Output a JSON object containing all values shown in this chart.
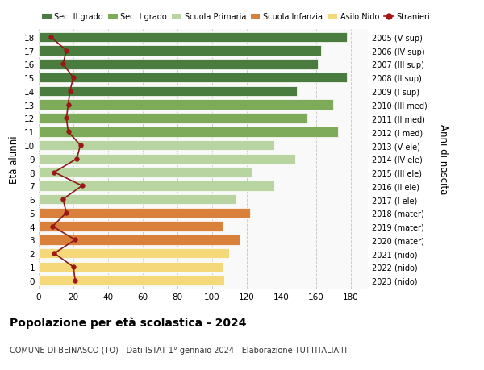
{
  "ages": [
    18,
    17,
    16,
    15,
    14,
    13,
    12,
    11,
    10,
    9,
    8,
    7,
    6,
    5,
    4,
    3,
    2,
    1,
    0
  ],
  "right_labels": [
    "2005 (V sup)",
    "2006 (IV sup)",
    "2007 (III sup)",
    "2008 (II sup)",
    "2009 (I sup)",
    "2010 (III med)",
    "2011 (II med)",
    "2012 (I med)",
    "2013 (V ele)",
    "2014 (IV ele)",
    "2015 (III ele)",
    "2016 (II ele)",
    "2017 (I ele)",
    "2018 (mater)",
    "2019 (mater)",
    "2020 (mater)",
    "2021 (nido)",
    "2022 (nido)",
    "2023 (nido)"
  ],
  "values": [
    178,
    163,
    161,
    178,
    149,
    170,
    155,
    173,
    136,
    148,
    123,
    136,
    114,
    122,
    106,
    116,
    110,
    106,
    107
  ],
  "stranieri": [
    7,
    16,
    14,
    20,
    18,
    17,
    16,
    17,
    24,
    22,
    9,
    25,
    14,
    16,
    8,
    21,
    9,
    20,
    21
  ],
  "bar_colors": [
    "#4a7c3f",
    "#4a7c3f",
    "#4a7c3f",
    "#4a7c3f",
    "#4a7c3f",
    "#7dab5a",
    "#7dab5a",
    "#7dab5a",
    "#b8d4a0",
    "#b8d4a0",
    "#b8d4a0",
    "#b8d4a0",
    "#b8d4a0",
    "#d9813a",
    "#d9813a",
    "#d9813a",
    "#f5d87a",
    "#f5d87a",
    "#f5d87a"
  ],
  "legend_labels": [
    "Sec. II grado",
    "Sec. I grado",
    "Scuola Primaria",
    "Scuola Infanzia",
    "Asilo Nido",
    "Stranieri"
  ],
  "legend_colors": [
    "#4a7c3f",
    "#7dab5a",
    "#b8d4a0",
    "#d9813a",
    "#f5d87a",
    "#a31515"
  ],
  "ylabel_left": "Età alunni",
  "ylabel_right": "Anni di nascita",
  "title": "Popolazione per età scolastica - 2024",
  "subtitle": "COMUNE DI BEINASCO (TO) - Dati ISTAT 1° gennaio 2024 - Elaborazione TUTTITALIA.IT",
  "xlim": [
    0,
    190
  ],
  "xticks": [
    0,
    20,
    40,
    60,
    80,
    100,
    120,
    140,
    160,
    180
  ],
  "bg_color": "#f9f9f9",
  "grid_color": "#cccccc"
}
